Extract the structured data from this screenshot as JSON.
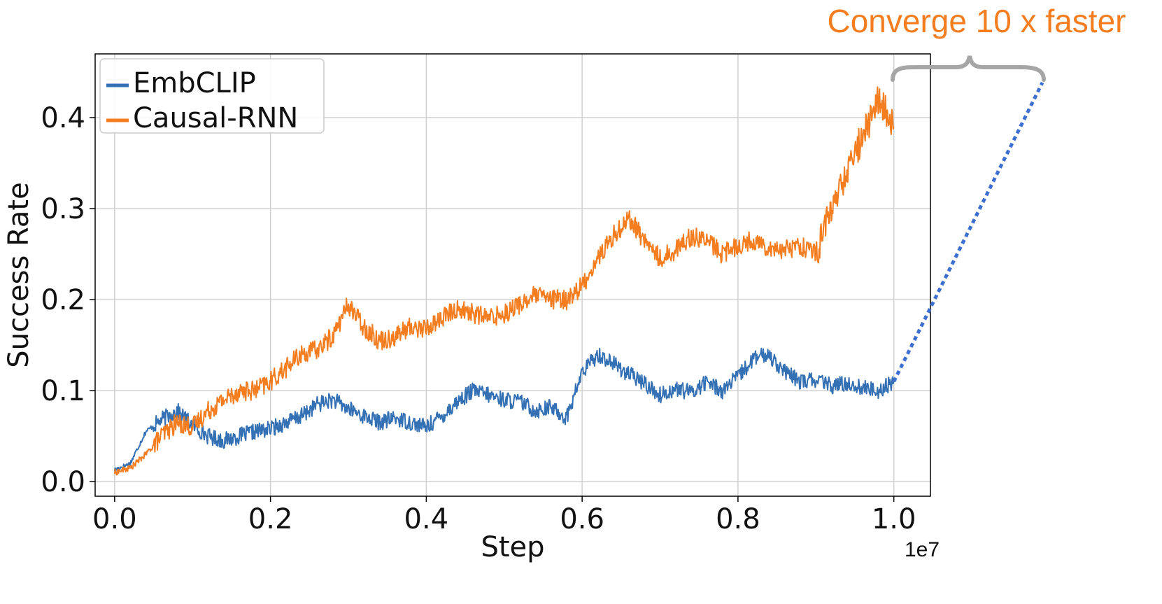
{
  "chart_data": {
    "type": "line",
    "xlabel": "Step",
    "ylabel": "Success Rate",
    "x_offset_label": "1e7",
    "xlim": [
      -0.025,
      1.047
    ],
    "ylim": [
      -0.016,
      0.47
    ],
    "x_ticks": [
      "0.0",
      "0.2",
      "0.4",
      "0.6",
      "0.8",
      "1.0"
    ],
    "y_ticks": [
      "0.0",
      "0.1",
      "0.2",
      "0.3",
      "0.4"
    ],
    "grid": true,
    "legend_position": "top-left",
    "series": [
      {
        "name": "EmbCLIP",
        "color": "#3470b4",
        "x": [
          0.0,
          0.02,
          0.04,
          0.06,
          0.08,
          0.1,
          0.12,
          0.14,
          0.16,
          0.18,
          0.2,
          0.22,
          0.24,
          0.26,
          0.28,
          0.3,
          0.32,
          0.34,
          0.36,
          0.38,
          0.4,
          0.42,
          0.44,
          0.46,
          0.48,
          0.5,
          0.52,
          0.54,
          0.56,
          0.58,
          0.6,
          0.62,
          0.64,
          0.66,
          0.68,
          0.7,
          0.72,
          0.74,
          0.76,
          0.78,
          0.8,
          0.82,
          0.84,
          0.86,
          0.88,
          0.9,
          0.92,
          0.94,
          0.96,
          0.98,
          1.0
        ],
        "y": [
          0.013,
          0.02,
          0.055,
          0.068,
          0.078,
          0.062,
          0.05,
          0.045,
          0.05,
          0.055,
          0.058,
          0.065,
          0.072,
          0.085,
          0.09,
          0.08,
          0.072,
          0.065,
          0.07,
          0.065,
          0.06,
          0.072,
          0.088,
          0.1,
          0.095,
          0.09,
          0.088,
          0.078,
          0.082,
          0.07,
          0.12,
          0.14,
          0.13,
          0.118,
          0.108,
          0.095,
          0.102,
          0.098,
          0.11,
          0.1,
          0.115,
          0.135,
          0.14,
          0.12,
          0.11,
          0.112,
          0.105,
          0.108,
          0.103,
          0.1,
          0.11
        ]
      },
      {
        "name": "Causal-RNN",
        "color": "#f47d20",
        "x": [
          0.0,
          0.02,
          0.04,
          0.06,
          0.08,
          0.1,
          0.12,
          0.14,
          0.16,
          0.18,
          0.2,
          0.22,
          0.24,
          0.26,
          0.28,
          0.3,
          0.32,
          0.34,
          0.36,
          0.38,
          0.4,
          0.42,
          0.44,
          0.46,
          0.48,
          0.5,
          0.52,
          0.54,
          0.56,
          0.58,
          0.6,
          0.62,
          0.64,
          0.66,
          0.68,
          0.7,
          0.72,
          0.74,
          0.76,
          0.78,
          0.8,
          0.82,
          0.84,
          0.86,
          0.88,
          0.9,
          0.92,
          0.94,
          0.96,
          0.98,
          1.0
        ],
        "y": [
          0.01,
          0.015,
          0.03,
          0.05,
          0.065,
          0.06,
          0.078,
          0.09,
          0.1,
          0.1,
          0.11,
          0.125,
          0.14,
          0.145,
          0.16,
          0.195,
          0.17,
          0.155,
          0.16,
          0.17,
          0.168,
          0.18,
          0.19,
          0.185,
          0.18,
          0.185,
          0.195,
          0.205,
          0.2,
          0.2,
          0.215,
          0.245,
          0.27,
          0.29,
          0.265,
          0.245,
          0.255,
          0.27,
          0.265,
          0.25,
          0.26,
          0.265,
          0.258,
          0.255,
          0.26,
          0.25,
          0.3,
          0.34,
          0.38,
          0.42,
          0.39
        ]
      }
    ],
    "annotation": {
      "text": "Converge 10 x faster",
      "color": "#f47d20"
    }
  }
}
